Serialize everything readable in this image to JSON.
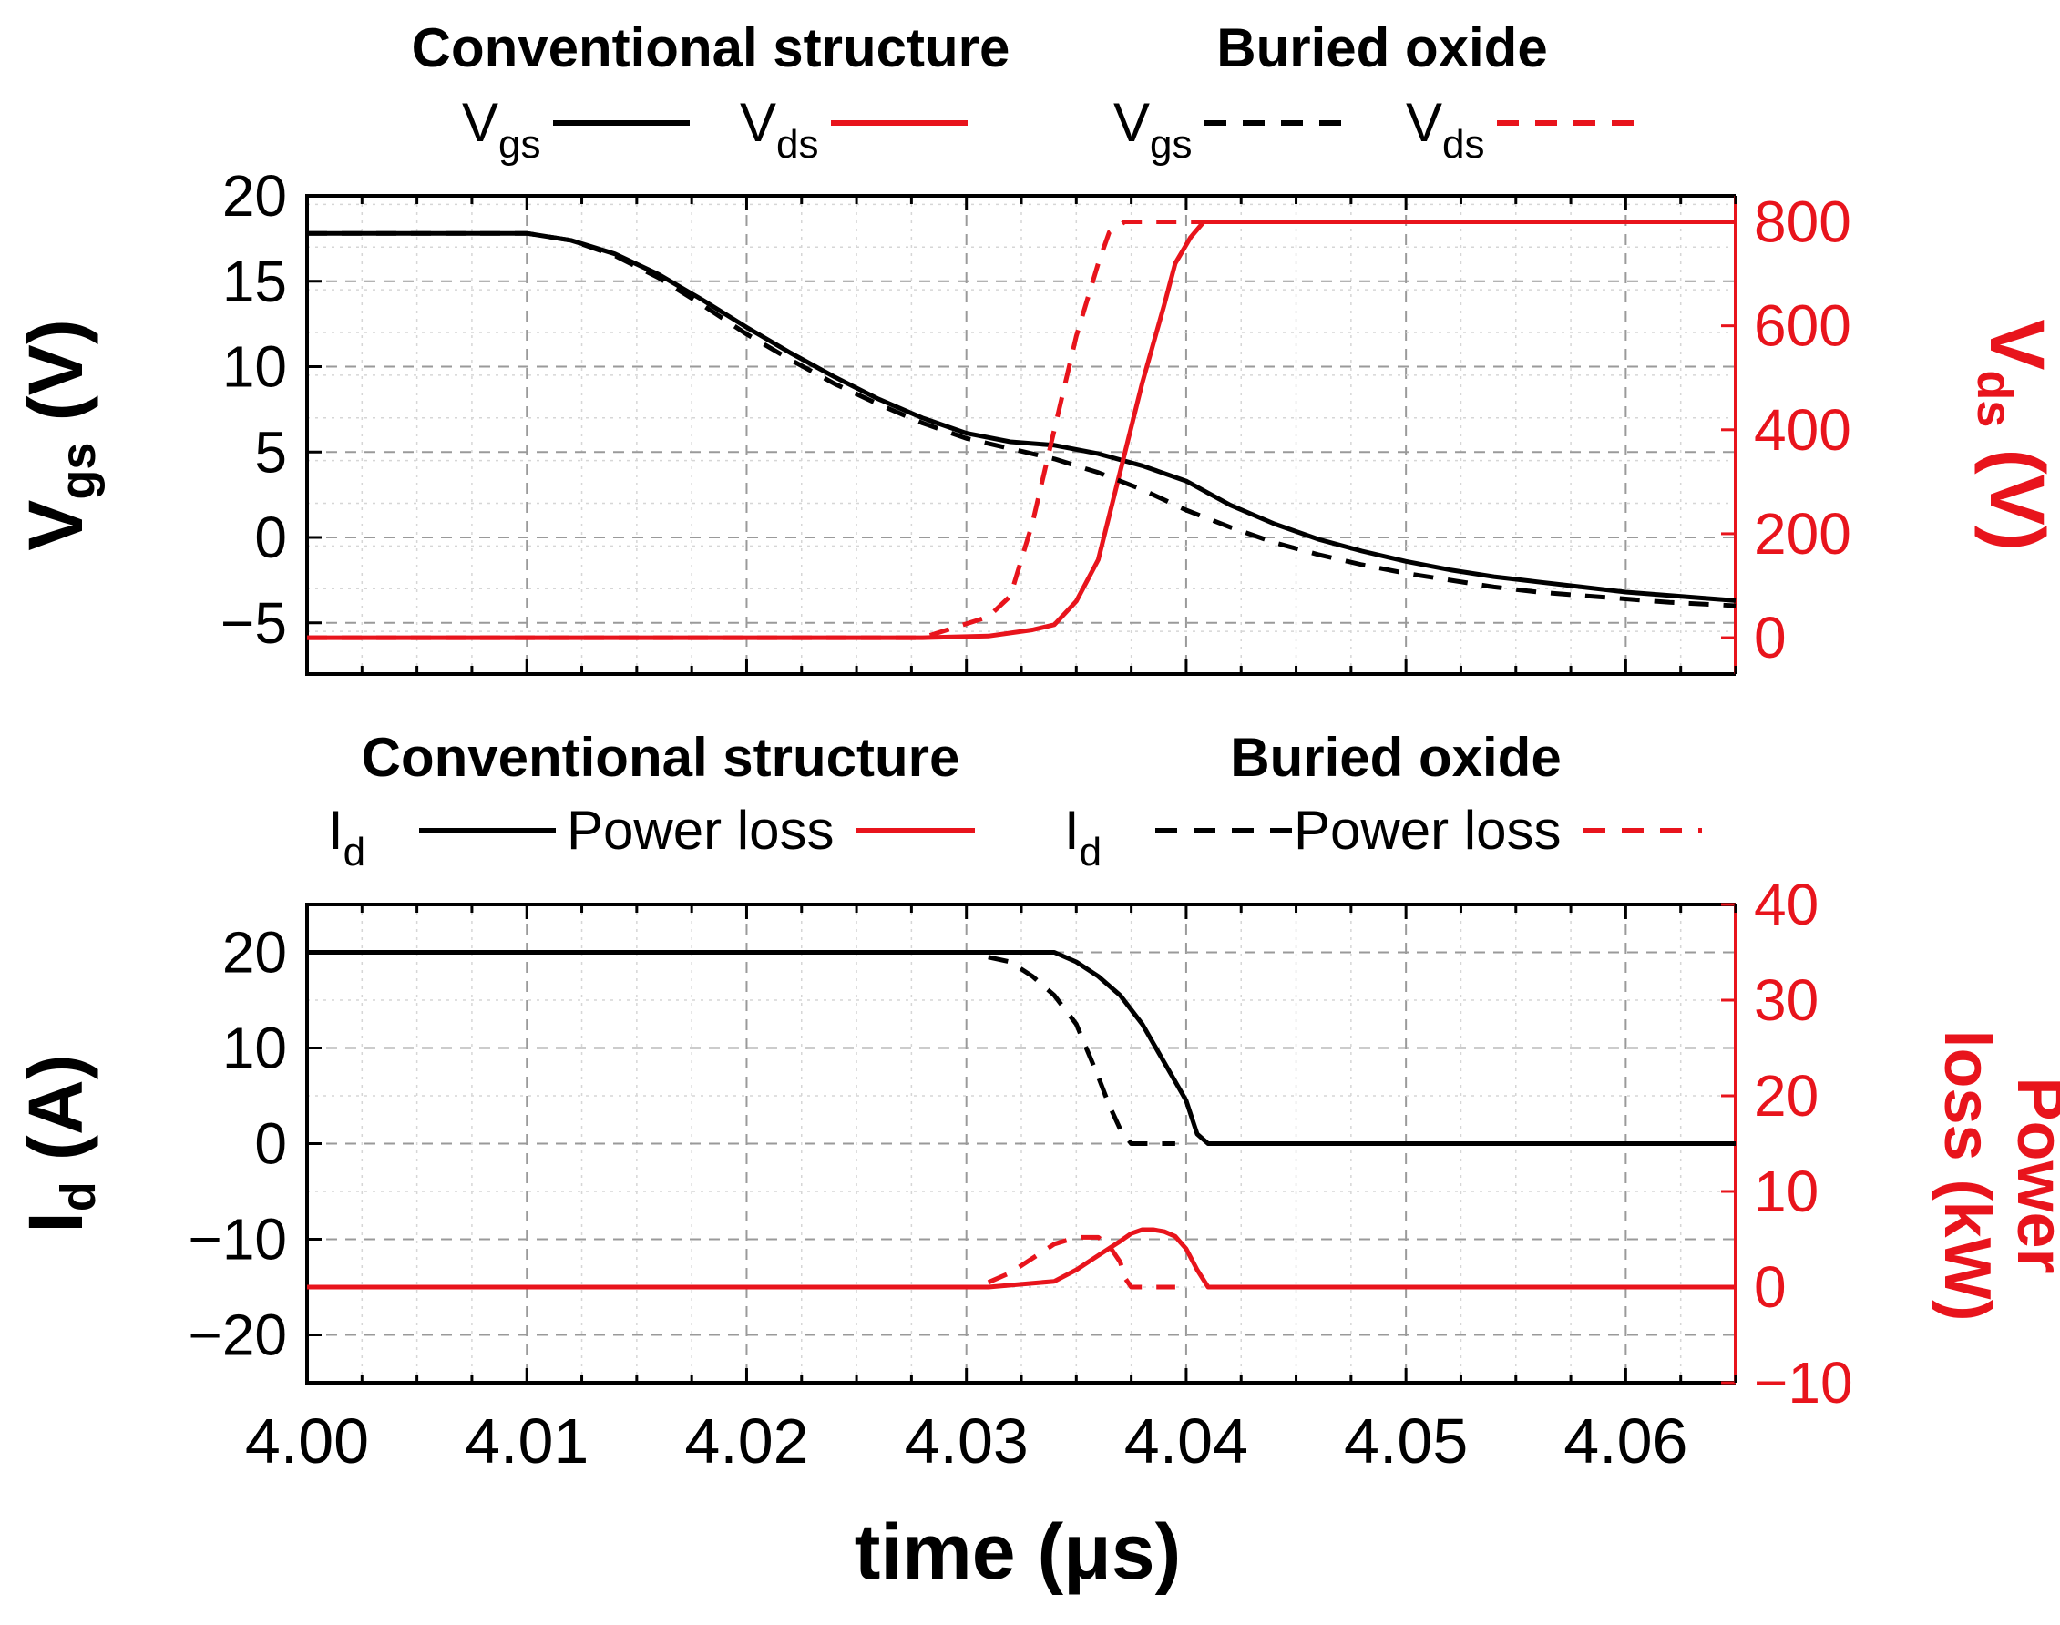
{
  "chart_data": [
    {
      "type": "line",
      "panel": "top",
      "legend_groups": [
        {
          "title": "Conventional structure",
          "items": [
            {
              "label": "V",
              "sub": "gs",
              "color": "#000000",
              "style": "solid"
            },
            {
              "label": "V",
              "sub": "ds",
              "color": "#e8141c",
              "style": "solid"
            }
          ]
        },
        {
          "title": "Buried oxide",
          "items": [
            {
              "label": "V",
              "sub": "gs",
              "color": "#000000",
              "style": "dashed"
            },
            {
              "label": "V",
              "sub": "ds",
              "color": "#e8141c",
              "style": "dashed"
            }
          ]
        }
      ],
      "ylabel_left": {
        "main": "V",
        "sub": "gs",
        "rest": " (V)"
      },
      "ylabel_right": {
        "main": "V",
        "sub": "ds",
        "rest": " (V)"
      },
      "xlim": [
        4.0,
        4.065
      ],
      "ylim_left": [
        -8,
        20
      ],
      "ylim_right": [
        -70,
        850
      ],
      "yticks_left": [
        20,
        15,
        10,
        5,
        0,
        -5
      ],
      "ytick_labels_left": [
        "20",
        "15",
        "10",
        "5",
        "0",
        "−5"
      ],
      "yticks_right": [
        800,
        600,
        400,
        200,
        0
      ],
      "ytick_labels_right": [
        "800",
        "600",
        "400",
        "200",
        "0"
      ],
      "series": [
        {
          "name": "Vgs conventional",
          "axis": "left",
          "color": "#000000",
          "style": "solid",
          "x": [
            4.0,
            4.01,
            4.012,
            4.014,
            4.016,
            4.018,
            4.02,
            4.022,
            4.024,
            4.026,
            4.028,
            4.03,
            4.032,
            4.034,
            4.036,
            4.038,
            4.04,
            4.042,
            4.044,
            4.046,
            4.048,
            4.05,
            4.052,
            4.054,
            4.056,
            4.058,
            4.06,
            4.062,
            4.065
          ],
          "y": [
            17.8,
            17.8,
            17.4,
            16.6,
            15.4,
            13.9,
            12.3,
            10.8,
            9.4,
            8.1,
            7.0,
            6.1,
            5.6,
            5.4,
            4.9,
            4.2,
            3.3,
            1.9,
            0.8,
            -0.1,
            -0.8,
            -1.4,
            -1.9,
            -2.3,
            -2.6,
            -2.9,
            -3.2,
            -3.4,
            -3.7
          ]
        },
        {
          "name": "Vds conventional",
          "axis": "right",
          "color": "#e8141c",
          "style": "solid",
          "x": [
            4.0,
            4.028,
            4.031,
            4.033,
            4.034,
            4.035,
            4.036,
            4.037,
            4.038,
            4.039,
            4.0395,
            4.0402,
            4.0408,
            4.065
          ],
          "y": [
            0,
            0,
            3,
            15,
            25,
            70,
            150,
            320,
            490,
            640,
            720,
            770,
            800,
            800
          ]
        },
        {
          "name": "Vgs buried oxide",
          "axis": "left",
          "color": "#000000",
          "style": "dashed",
          "x": [
            4.0,
            4.01,
            4.012,
            4.014,
            4.016,
            4.018,
            4.02,
            4.022,
            4.024,
            4.026,
            4.028,
            4.03,
            4.032,
            4.034,
            4.036,
            4.038,
            4.04,
            4.042,
            4.044,
            4.046,
            4.048,
            4.05,
            4.052,
            4.054,
            4.056,
            4.058,
            4.06,
            4.062,
            4.065
          ],
          "y": [
            17.8,
            17.8,
            17.4,
            16.5,
            15.2,
            13.6,
            11.9,
            10.4,
            9.0,
            7.8,
            6.7,
            5.8,
            5.2,
            4.6,
            3.8,
            2.8,
            1.6,
            0.6,
            -0.3,
            -1.0,
            -1.6,
            -2.1,
            -2.5,
            -2.9,
            -3.2,
            -3.4,
            -3.6,
            -3.8,
            -4.0
          ]
        },
        {
          "name": "Vds buried oxide",
          "axis": "right",
          "color": "#e8141c",
          "style": "dashed",
          "x": [
            4.0,
            4.028,
            4.031,
            4.032,
            4.033,
            4.034,
            4.035,
            4.036,
            4.0365,
            4.0372,
            4.065
          ],
          "y": [
            0,
            0,
            40,
            80,
            220,
            400,
            580,
            720,
            780,
            800,
            800
          ]
        }
      ]
    },
    {
      "type": "line",
      "panel": "bottom",
      "legend_groups": [
        {
          "title": "Conventional structure",
          "items": [
            {
              "label": "I",
              "sub": "d",
              "color": "#000000",
              "style": "solid"
            },
            {
              "label": "Power loss",
              "sub": "",
              "color": "#e8141c",
              "style": "solid"
            }
          ]
        },
        {
          "title": "Buried oxide",
          "items": [
            {
              "label": "I",
              "sub": "d",
              "color": "#000000",
              "style": "dashed"
            },
            {
              "label": "Power loss",
              "sub": "",
              "color": "#e8141c",
              "style": "dashed"
            }
          ]
        }
      ],
      "ylabel_left": {
        "main": "I",
        "sub": "d",
        "rest": " (A)"
      },
      "ylabel_right_lines": [
        "Power",
        "loss (kW)"
      ],
      "xlabel": "time (μs)",
      "xlim": [
        4.0,
        4.065
      ],
      "xticks": [
        4.0,
        4.01,
        4.02,
        4.03,
        4.04,
        4.05,
        4.06
      ],
      "xtick_labels": [
        "4.00",
        "4.01",
        "4.02",
        "4.03",
        "4.04",
        "4.05",
        "4.06"
      ],
      "ylim_left": [
        -25,
        25
      ],
      "ylim_right": [
        -10,
        40
      ],
      "yticks_left": [
        20,
        10,
        0,
        -10,
        -20
      ],
      "ytick_labels_left": [
        "20",
        "10",
        "0",
        "−10",
        "−20"
      ],
      "yticks_right": [
        40,
        30,
        20,
        10,
        0,
        -10
      ],
      "ytick_labels_right": [
        "40",
        "30",
        "20",
        "10",
        "0",
        "−10"
      ],
      "series": [
        {
          "name": "Id conventional",
          "axis": "left",
          "color": "#000000",
          "style": "solid",
          "x": [
            4.0,
            4.034,
            4.035,
            4.036,
            4.037,
            4.038,
            4.039,
            4.04,
            4.0405,
            4.041,
            4.065
          ],
          "y": [
            20,
            20,
            19,
            17.5,
            15.5,
            12.5,
            8.5,
            4.5,
            1.0,
            0,
            0
          ]
        },
        {
          "name": "Power loss conventional",
          "axis": "right",
          "color": "#e8141c",
          "style": "solid",
          "x": [
            4.0,
            4.031,
            4.034,
            4.035,
            4.036,
            4.037,
            4.0375,
            4.038,
            4.0385,
            4.039,
            4.0395,
            4.04,
            4.0405,
            4.041,
            4.065
          ],
          "y": [
            0,
            0,
            0.6,
            1.8,
            3.3,
            4.8,
            5.6,
            6.0,
            6.0,
            5.8,
            5.3,
            4.0,
            1.8,
            0,
            0
          ]
        },
        {
          "name": "Id buried oxide",
          "axis": "left",
          "color": "#000000",
          "style": "dashed",
          "x": [
            4.031,
            4.032,
            4.033,
            4.034,
            4.035,
            4.036,
            4.0365,
            4.037,
            4.0375,
            4.038,
            4.0395
          ],
          "y": [
            19.5,
            19.0,
            17.5,
            15.5,
            12.5,
            7.0,
            4.0,
            1.5,
            0,
            0,
            0
          ]
        },
        {
          "name": "Power loss buried oxide",
          "axis": "right",
          "color": "#e8141c",
          "style": "dashed",
          "x": [
            4.031,
            4.032,
            4.033,
            4.034,
            4.035,
            4.036,
            4.0365,
            4.037,
            4.0372,
            4.0375,
            4.038,
            4.0395
          ],
          "y": [
            0.5,
            1.5,
            3.0,
            4.5,
            5.2,
            5.2,
            4.3,
            2.6,
            1.0,
            0,
            0,
            0
          ]
        }
      ]
    }
  ]
}
